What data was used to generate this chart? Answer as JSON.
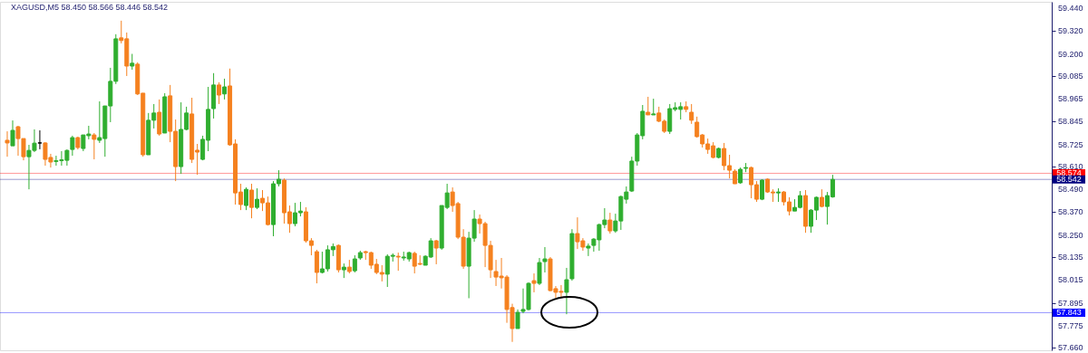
{
  "chart_data": {
    "type": "candlestick",
    "title": "XAGUSD,M5  58.450 58.566 58.446 58.542",
    "categories": [
      null,
      null,
      null,
      null,
      null,
      null,
      null,
      null,
      null,
      null,
      null,
      null,
      null,
      null,
      null,
      null,
      null,
      null,
      null,
      null,
      null,
      null,
      null,
      null,
      null,
      null,
      null,
      null,
      null,
      null,
      null,
      null,
      null,
      null,
      null,
      null,
      null,
      null,
      null,
      null,
      null,
      null,
      null,
      null,
      null,
      null,
      null,
      null,
      null,
      null,
      null,
      null,
      null,
      null,
      null,
      null,
      null,
      null,
      null,
      null,
      null,
      null,
      null,
      null,
      null,
      null,
      null,
      null,
      null,
      null,
      null,
      null,
      null,
      null,
      null,
      null,
      null,
      null,
      null,
      null,
      null,
      null,
      null,
      null,
      null,
      null,
      null,
      null,
      null,
      null,
      null,
      null,
      null,
      null,
      null,
      null,
      null,
      null,
      null,
      null,
      null,
      null,
      null,
      null,
      null,
      null,
      null,
      null,
      null,
      null,
      null,
      null,
      null,
      null,
      null,
      null,
      null,
      null,
      null,
      null,
      null,
      null,
      null,
      null,
      null,
      null,
      null,
      null,
      null,
      null,
      null,
      null,
      null,
      null,
      null,
      null,
      null,
      null,
      null,
      null,
      null,
      null,
      null,
      null,
      null,
      null,
      null,
      null,
      null,
      null,
      null,
      null,
      null,
      null,
      null,
      null,
      null,
      null,
      null,
      null,
      null,
      null,
      null,
      null,
      null,
      null,
      null,
      null,
      null,
      null,
      null,
      null,
      null,
      null,
      null,
      null,
      null,
      null,
      null,
      null,
      null,
      null,
      null,
      null,
      null,
      null,
      null,
      null,
      null,
      null,
      null,
      null
    ],
    "ohlc": [
      [
        58.747,
        58.794,
        58.661,
        58.733
      ],
      [
        58.718,
        58.851,
        58.718,
        58.799
      ],
      [
        58.818,
        58.823,
        58.666,
        58.756
      ],
      [
        58.756,
        58.756,
        58.642,
        58.661
      ],
      [
        58.661,
        58.723,
        58.49,
        58.694
      ],
      [
        58.694,
        58.804,
        58.685,
        58.732
      ],
      [
        58.733,
        58.799,
        58.7,
        58.733
      ],
      [
        58.733,
        58.737,
        58.614,
        58.647
      ],
      [
        58.657,
        58.676,
        58.604,
        58.633
      ],
      [
        58.636,
        58.666,
        58.614,
        58.64
      ],
      [
        58.64,
        58.69,
        58.614,
        58.645
      ],
      [
        58.642,
        58.699,
        58.614,
        58.694
      ],
      [
        58.699,
        58.771,
        58.666,
        58.761
      ],
      [
        58.761,
        58.766,
        58.699,
        58.709
      ],
      [
        58.704,
        58.775,
        58.69,
        58.775
      ],
      [
        58.771,
        58.823,
        58.752,
        58.78
      ],
      [
        58.775,
        58.785,
        58.647,
        58.752
      ],
      [
        58.747,
        58.951,
        58.733,
        58.761
      ],
      [
        58.756,
        58.927,
        58.661,
        58.927
      ],
      [
        58.927,
        59.127,
        58.842,
        59.056
      ],
      [
        59.056,
        59.303,
        59.042,
        59.279
      ],
      [
        59.284,
        59.374,
        59.255,
        59.27
      ],
      [
        59.279,
        59.312,
        59.084,
        59.136
      ],
      [
        59.136,
        59.2,
        59.117,
        59.151
      ],
      [
        59.146,
        59.156,
        58.984,
        58.99
      ],
      [
        58.994,
        58.994,
        58.661,
        58.671
      ],
      [
        58.671,
        58.89,
        58.671,
        58.852
      ],
      [
        58.852,
        58.937,
        58.809,
        58.89
      ],
      [
        58.894,
        58.961,
        58.771,
        58.78
      ],
      [
        58.785,
        58.994,
        58.785,
        58.975
      ],
      [
        58.98,
        59.037,
        58.737,
        58.794
      ],
      [
        58.794,
        58.856,
        58.533,
        58.609
      ],
      [
        58.609,
        58.946,
        58.571,
        58.804
      ],
      [
        58.804,
        58.923,
        58.799,
        58.89
      ],
      [
        58.885,
        58.97,
        58.628,
        58.647
      ],
      [
        58.695,
        58.728,
        58.566,
        58.685
      ],
      [
        58.647,
        58.771,
        58.642,
        58.752
      ],
      [
        58.747,
        59.027,
        58.69,
        58.909
      ],
      [
        58.913,
        59.099,
        58.861,
        59.037
      ],
      [
        59.037,
        59.051,
        58.937,
        58.984
      ],
      [
        58.99,
        59.07,
        58.961,
        59.027
      ],
      [
        59.032,
        59.123,
        58.718,
        58.723
      ],
      [
        58.728,
        58.752,
        58.41,
        58.471
      ],
      [
        58.476,
        58.519,
        58.381,
        58.41
      ],
      [
        58.405,
        58.5,
        58.381,
        58.49
      ],
      [
        58.486,
        58.519,
        58.338,
        58.395
      ],
      [
        58.395,
        58.495,
        58.386,
        58.438
      ],
      [
        58.443,
        58.486,
        58.376,
        58.419
      ],
      [
        58.419,
        58.452,
        58.3,
        58.305
      ],
      [
        58.305,
        58.533,
        58.244,
        58.519
      ],
      [
        58.519,
        58.59,
        58.505,
        58.543
      ],
      [
        58.538,
        58.547,
        58.31,
        58.367
      ],
      [
        58.372,
        58.405,
        58.262,
        58.31
      ],
      [
        58.31,
        58.419,
        58.296,
        58.367
      ],
      [
        58.367,
        58.424,
        58.348,
        58.376
      ],
      [
        58.372,
        58.396,
        58.21,
        58.22
      ],
      [
        58.22,
        58.234,
        58.144,
        58.196
      ],
      [
        58.163,
        58.173,
        57.997,
        58.054
      ],
      [
        58.054,
        58.163,
        58.049,
        58.073
      ],
      [
        58.073,
        58.196,
        58.059,
        58.173
      ],
      [
        58.173,
        58.206,
        58.14,
        58.19
      ],
      [
        58.196,
        58.201,
        58.054,
        58.068
      ],
      [
        58.068,
        58.101,
        58.025,
        58.082
      ],
      [
        58.082,
        58.12,
        58.049,
        58.059
      ],
      [
        58.063,
        58.144,
        58.054,
        58.125
      ],
      [
        58.13,
        58.168,
        58.12,
        58.158
      ],
      [
        58.163,
        58.168,
        58.12,
        58.158
      ],
      [
        58.158,
        58.163,
        58.073,
        58.092
      ],
      [
        58.097,
        58.125,
        58.045,
        58.054
      ],
      [
        58.054,
        58.092,
        58.007,
        58.045
      ],
      [
        58.045,
        58.149,
        57.978,
        58.139
      ],
      [
        58.139,
        58.154,
        58.111,
        58.144
      ],
      [
        58.139,
        58.158,
        58.063,
        58.135
      ],
      [
        58.13,
        58.163,
        58.116,
        58.135
      ],
      [
        58.125,
        58.163,
        58.111,
        58.158
      ],
      [
        58.154,
        58.163,
        58.049,
        58.087
      ],
      [
        58.101,
        58.144,
        58.092,
        58.097
      ],
      [
        58.092,
        58.144,
        58.092,
        58.139
      ],
      [
        58.135,
        58.234,
        58.13,
        58.22
      ],
      [
        58.22,
        58.225,
        58.097,
        58.182
      ],
      [
        58.182,
        58.405,
        58.173,
        58.405
      ],
      [
        58.395,
        58.519,
        58.386,
        58.471
      ],
      [
        58.476,
        58.5,
        58.372,
        58.405
      ],
      [
        58.415,
        58.424,
        58.229,
        58.239
      ],
      [
        58.239,
        58.281,
        58.073,
        58.087
      ],
      [
        58.087,
        58.267,
        57.919,
        58.234
      ],
      [
        58.234,
        58.381,
        58.215,
        58.334
      ],
      [
        58.334,
        58.358,
        58.258,
        58.31
      ],
      [
        58.31,
        58.32,
        58.082,
        58.196
      ],
      [
        58.196,
        58.22,
        58.025,
        58.068
      ],
      [
        58.059,
        58.12,
        57.983,
        58.03
      ],
      [
        58.035,
        58.13,
        57.97,
        58.026
      ],
      [
        58.03,
        58.04,
        57.79,
        57.86
      ],
      [
        57.87,
        57.89,
        57.69,
        57.76
      ],
      [
        57.76,
        57.86,
        57.76,
        57.845
      ],
      [
        57.85,
        57.97,
        57.84,
        57.86
      ],
      [
        57.86,
        58.002,
        57.855,
        57.997
      ],
      [
        58.011,
        58.049,
        57.95,
        57.997
      ],
      [
        57.997,
        58.13,
        57.988,
        58.106
      ],
      [
        58.111,
        58.187,
        58.054,
        58.125
      ],
      [
        58.125,
        58.135,
        57.955,
        57.959
      ],
      [
        57.969,
        57.983,
        57.921,
        57.95
      ],
      [
        57.955,
        57.988,
        57.926,
        57.95
      ],
      [
        57.95,
        58.078,
        57.835,
        58.016
      ],
      [
        58.021,
        58.281,
        58.011,
        58.258
      ],
      [
        58.258,
        58.343,
        58.177,
        58.215
      ],
      [
        58.22,
        58.234,
        58.168,
        58.187
      ],
      [
        58.182,
        58.206,
        58.14,
        58.192
      ],
      [
        58.196,
        58.234,
        58.163,
        58.229
      ],
      [
        58.225,
        58.31,
        58.168,
        58.305
      ],
      [
        58.305,
        58.391,
        58.286,
        58.329
      ],
      [
        58.329,
        58.367,
        58.258,
        58.272
      ],
      [
        58.272,
        58.362,
        58.262,
        58.324
      ],
      [
        58.324,
        58.457,
        58.277,
        58.452
      ],
      [
        58.438,
        58.505,
        58.415,
        58.476
      ],
      [
        58.481,
        58.661,
        58.476,
        58.638
      ],
      [
        58.638,
        58.785,
        58.614,
        58.775
      ],
      [
        58.771,
        58.932,
        58.752,
        58.899
      ],
      [
        58.894,
        58.975,
        58.88,
        58.88
      ],
      [
        58.88,
        58.965,
        58.88,
        58.885
      ],
      [
        58.89,
        58.923,
        58.842,
        58.847
      ],
      [
        58.847,
        58.856,
        58.785,
        58.794
      ],
      [
        58.794,
        58.937,
        58.78,
        58.913
      ],
      [
        58.909,
        58.946,
        58.899,
        58.918
      ],
      [
        58.909,
        58.946,
        58.856,
        58.923
      ],
      [
        58.923,
        58.951,
        58.894,
        58.909
      ],
      [
        58.894,
        58.937,
        58.833,
        58.852
      ],
      [
        58.842,
        58.871,
        58.761,
        58.766
      ],
      [
        58.775,
        58.78,
        58.709,
        58.728
      ],
      [
        58.728,
        58.756,
        58.676,
        58.699
      ],
      [
        58.718,
        58.737,
        58.652,
        58.657
      ],
      [
        58.657,
        58.709,
        58.652,
        58.704
      ],
      [
        58.704,
        58.733,
        58.59,
        58.614
      ],
      [
        58.614,
        58.671,
        58.547,
        58.59
      ],
      [
        58.585,
        58.595,
        58.519,
        58.519
      ],
      [
        58.524,
        58.604,
        58.519,
        58.595
      ],
      [
        58.6,
        58.628,
        58.58,
        58.604
      ],
      [
        58.604,
        58.609,
        58.443,
        58.514
      ],
      [
        58.514,
        58.533,
        58.424,
        58.438
      ],
      [
        58.438,
        58.543,
        58.433,
        58.538
      ],
      [
        58.543,
        58.547,
        58.471,
        58.476
      ],
      [
        58.476,
        58.49,
        58.424,
        58.471
      ],
      [
        58.471,
        58.495,
        58.424,
        58.476
      ],
      [
        58.476,
        58.481,
        58.405,
        58.424
      ],
      [
        58.424,
        58.448,
        58.353,
        58.376
      ],
      [
        58.376,
        58.438,
        58.376,
        58.395
      ],
      [
        58.395,
        58.481,
        58.39,
        58.457
      ],
      [
        58.457,
        58.486,
        58.262,
        58.296
      ],
      [
        58.296,
        58.386,
        58.262,
        58.381
      ],
      [
        58.381,
        58.452,
        58.329,
        58.448
      ],
      [
        58.448,
        58.49,
        58.395,
        58.4
      ],
      [
        58.4,
        58.476,
        58.305,
        58.457
      ],
      [
        58.45,
        58.566,
        58.446,
        58.542
      ],
      null,
      null,
      null,
      null,
      null,
      null,
      null,
      null,
      null,
      null,
      null,
      null,
      null,
      null,
      null,
      null,
      null,
      null,
      null,
      null,
      null,
      null,
      null,
      null,
      null,
      null,
      null,
      null,
      null,
      null,
      null,
      null,
      null,
      null,
      null,
      null,
      null,
      null,
      null
    ],
    "colors": [
      "#f5811f",
      "#2fae2f",
      "#f5811f",
      "#f5811f",
      "#2fae2f",
      "#2fae2f",
      "#000000",
      "#f5811f",
      "#f5811f",
      "#2fae2f",
      "#2fae2f",
      "#2fae2f",
      "#2fae2f",
      "#f5811f",
      "#2fae2f",
      "#2fae2f",
      "#f5811f",
      "#2fae2f",
      "#2fae2f",
      "#2fae2f",
      "#2fae2f",
      "#f5811f",
      "#f5811f",
      "#2fae2f",
      "#f5811f",
      "#f5811f",
      "#2fae2f",
      "#2fae2f",
      "#f5811f",
      "#2fae2f",
      "#f5811f",
      "#f5811f",
      "#2fae2f",
      "#2fae2f",
      "#f5811f",
      "#f5811f",
      "#2fae2f",
      "#2fae2f",
      "#2fae2f",
      "#f5811f",
      "#2fae2f",
      "#f5811f",
      "#f5811f",
      "#f5811f",
      "#2fae2f",
      "#f5811f",
      "#2fae2f",
      "#f5811f",
      "#f5811f",
      "#2fae2f",
      "#2fae2f",
      "#f5811f",
      "#f5811f",
      "#2fae2f",
      "#2fae2f",
      "#f5811f",
      "#f5811f",
      "#f5811f",
      "#2fae2f",
      "#2fae2f",
      "#2fae2f",
      "#f5811f",
      "#2fae2f",
      "#f5811f",
      "#2fae2f",
      "#2fae2f",
      "#f5811f",
      "#f5811f",
      "#f5811f",
      "#f5811f",
      "#2fae2f",
      "#2fae2f",
      "#f5811f",
      "#2fae2f",
      "#2fae2f",
      "#f5811f",
      "#f5811f",
      "#2fae2f",
      "#2fae2f",
      "#f5811f",
      "#2fae2f",
      "#2fae2f",
      "#f5811f",
      "#f5811f",
      "#f5811f",
      "#2fae2f",
      "#2fae2f",
      "#f5811f",
      "#f5811f",
      "#f5811f",
      "#f5811f",
      "#f5811f",
      "#f5811f",
      "#f5811f",
      "#2fae2f",
      "#2fae2f",
      "#2fae2f",
      "#f5811f",
      "#2fae2f",
      "#2fae2f",
      "#f5811f",
      "#f5811f",
      "#f5811f",
      "#2fae2f",
      "#2fae2f",
      "#f5811f",
      "#f5811f",
      "#2fae2f",
      "#2fae2f",
      "#2fae2f",
      "#2fae2f",
      "#f5811f",
      "#2fae2f",
      "#2fae2f",
      "#2fae2f",
      "#2fae2f",
      "#2fae2f",
      "#2fae2f",
      "#f5811f",
      "#2fae2f",
      "#f5811f",
      "#f5811f",
      "#2fae2f",
      "#2fae2f",
      "#2fae2f",
      "#f5811f",
      "#f5811f",
      "#f5811f",
      "#f5811f",
      "#f5811f",
      "#f5811f",
      "#2fae2f",
      "#f5811f",
      "#f5811f",
      "#f5811f",
      "#2fae2f",
      "#2fae2f",
      "#f5811f",
      "#f5811f",
      "#2fae2f",
      "#f5811f",
      "#f5811f",
      "#2fae2f",
      "#f5811f",
      "#f5811f",
      "#2fae2f",
      "#2fae2f",
      "#f5811f",
      "#2fae2f",
      "#2fae2f",
      "#f5811f",
      "#2fae2f",
      "#2fae2f",
      null,
      null,
      null,
      null,
      null,
      null,
      null,
      null,
      null,
      null,
      null,
      null,
      null,
      null,
      null,
      null,
      null,
      null,
      null,
      null,
      null,
      null,
      null,
      null,
      null,
      null,
      null,
      null,
      null,
      null,
      null,
      null,
      null,
      null,
      null,
      null,
      null,
      null,
      null
    ],
    "ylim": [
      57.646,
      59.473
    ],
    "yticks": [
      {
        "value": 59.44,
        "label": "59.440"
      },
      {
        "value": 59.32,
        "label": "59.320"
      },
      {
        "value": 59.2,
        "label": "59.200"
      },
      59.085,
      58.965,
      58.845,
      58.725,
      {
        "value": 58.61,
        "label": "58.610"
      },
      {
        "value": 58.49,
        "label": "58.490"
      },
      {
        "value": 58.37,
        "label": "58.370"
      },
      {
        "value": 58.25,
        "label": "58.250"
      },
      58.135,
      58.015,
      57.895,
      57.775,
      {
        "value": 57.66,
        "label": "57.660"
      }
    ],
    "ref_lines": [
      {
        "axis": "y",
        "value": 58.574,
        "label": "58.574",
        "color": "#ff0000"
      },
      {
        "axis": "y",
        "value": 58.542,
        "label": "58.542",
        "color": "#000080"
      },
      {
        "axis": "y",
        "value": 57.843,
        "label": "57.843",
        "color": "#0000ff"
      }
    ],
    "tick_labels": "y",
    "grid": false,
    "legend": false
  }
}
